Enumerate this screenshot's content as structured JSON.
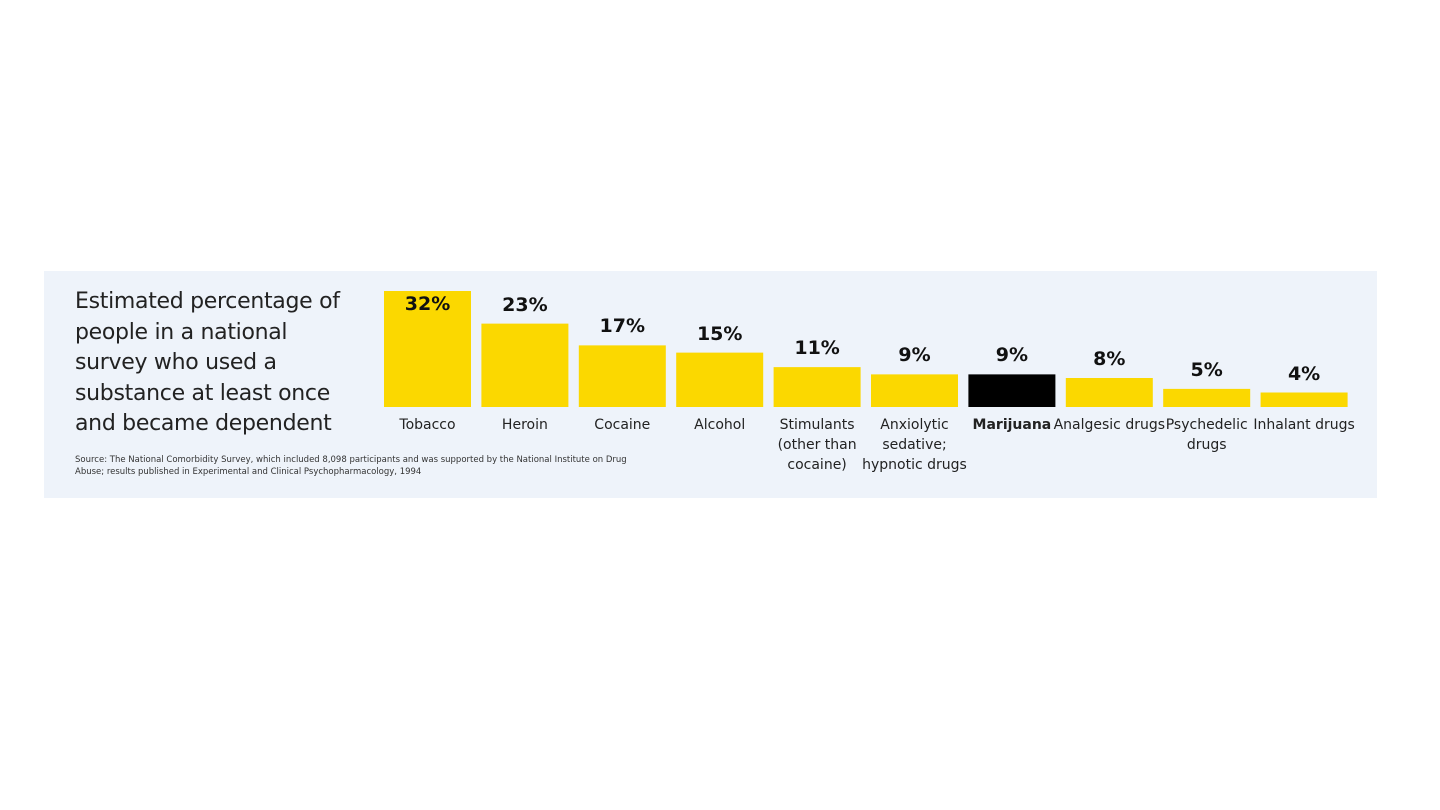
{
  "chart_data": {
    "type": "bar",
    "title": "Estimated percentage of people in a national survey who used a substance at least once and became dependent",
    "source": "Source: The National Comorbidity Survey, which included 8,098 participants and was supported by the National Institute on Drug Abuse; results published in Experimental and Clinical Psychopharmacology, 1994",
    "categories": [
      "Tobacco",
      "Heroin",
      "Cocaine",
      "Alcohol",
      "Stimulants (other than cocaine)",
      "Anxiolytic sedative; hypnotic drugs",
      "Marijuana",
      "Analgesic drugs",
      "Psychedelic drugs",
      "Inhalant drugs"
    ],
    "values": [
      32,
      23,
      17,
      15,
      11,
      9,
      9,
      8,
      5,
      4
    ],
    "value_labels": [
      "32%",
      "23%",
      "17%",
      "15%",
      "11%",
      "9%",
      "9%",
      "8%",
      "5%",
      "4%"
    ],
    "colors": [
      "#fbd800",
      "#fbd800",
      "#fbd800",
      "#fbd800",
      "#fbd800",
      "#fbd800",
      "#000000",
      "#fbd800",
      "#fbd800",
      "#fbd800"
    ],
    "highlight": "Marijuana"
  }
}
